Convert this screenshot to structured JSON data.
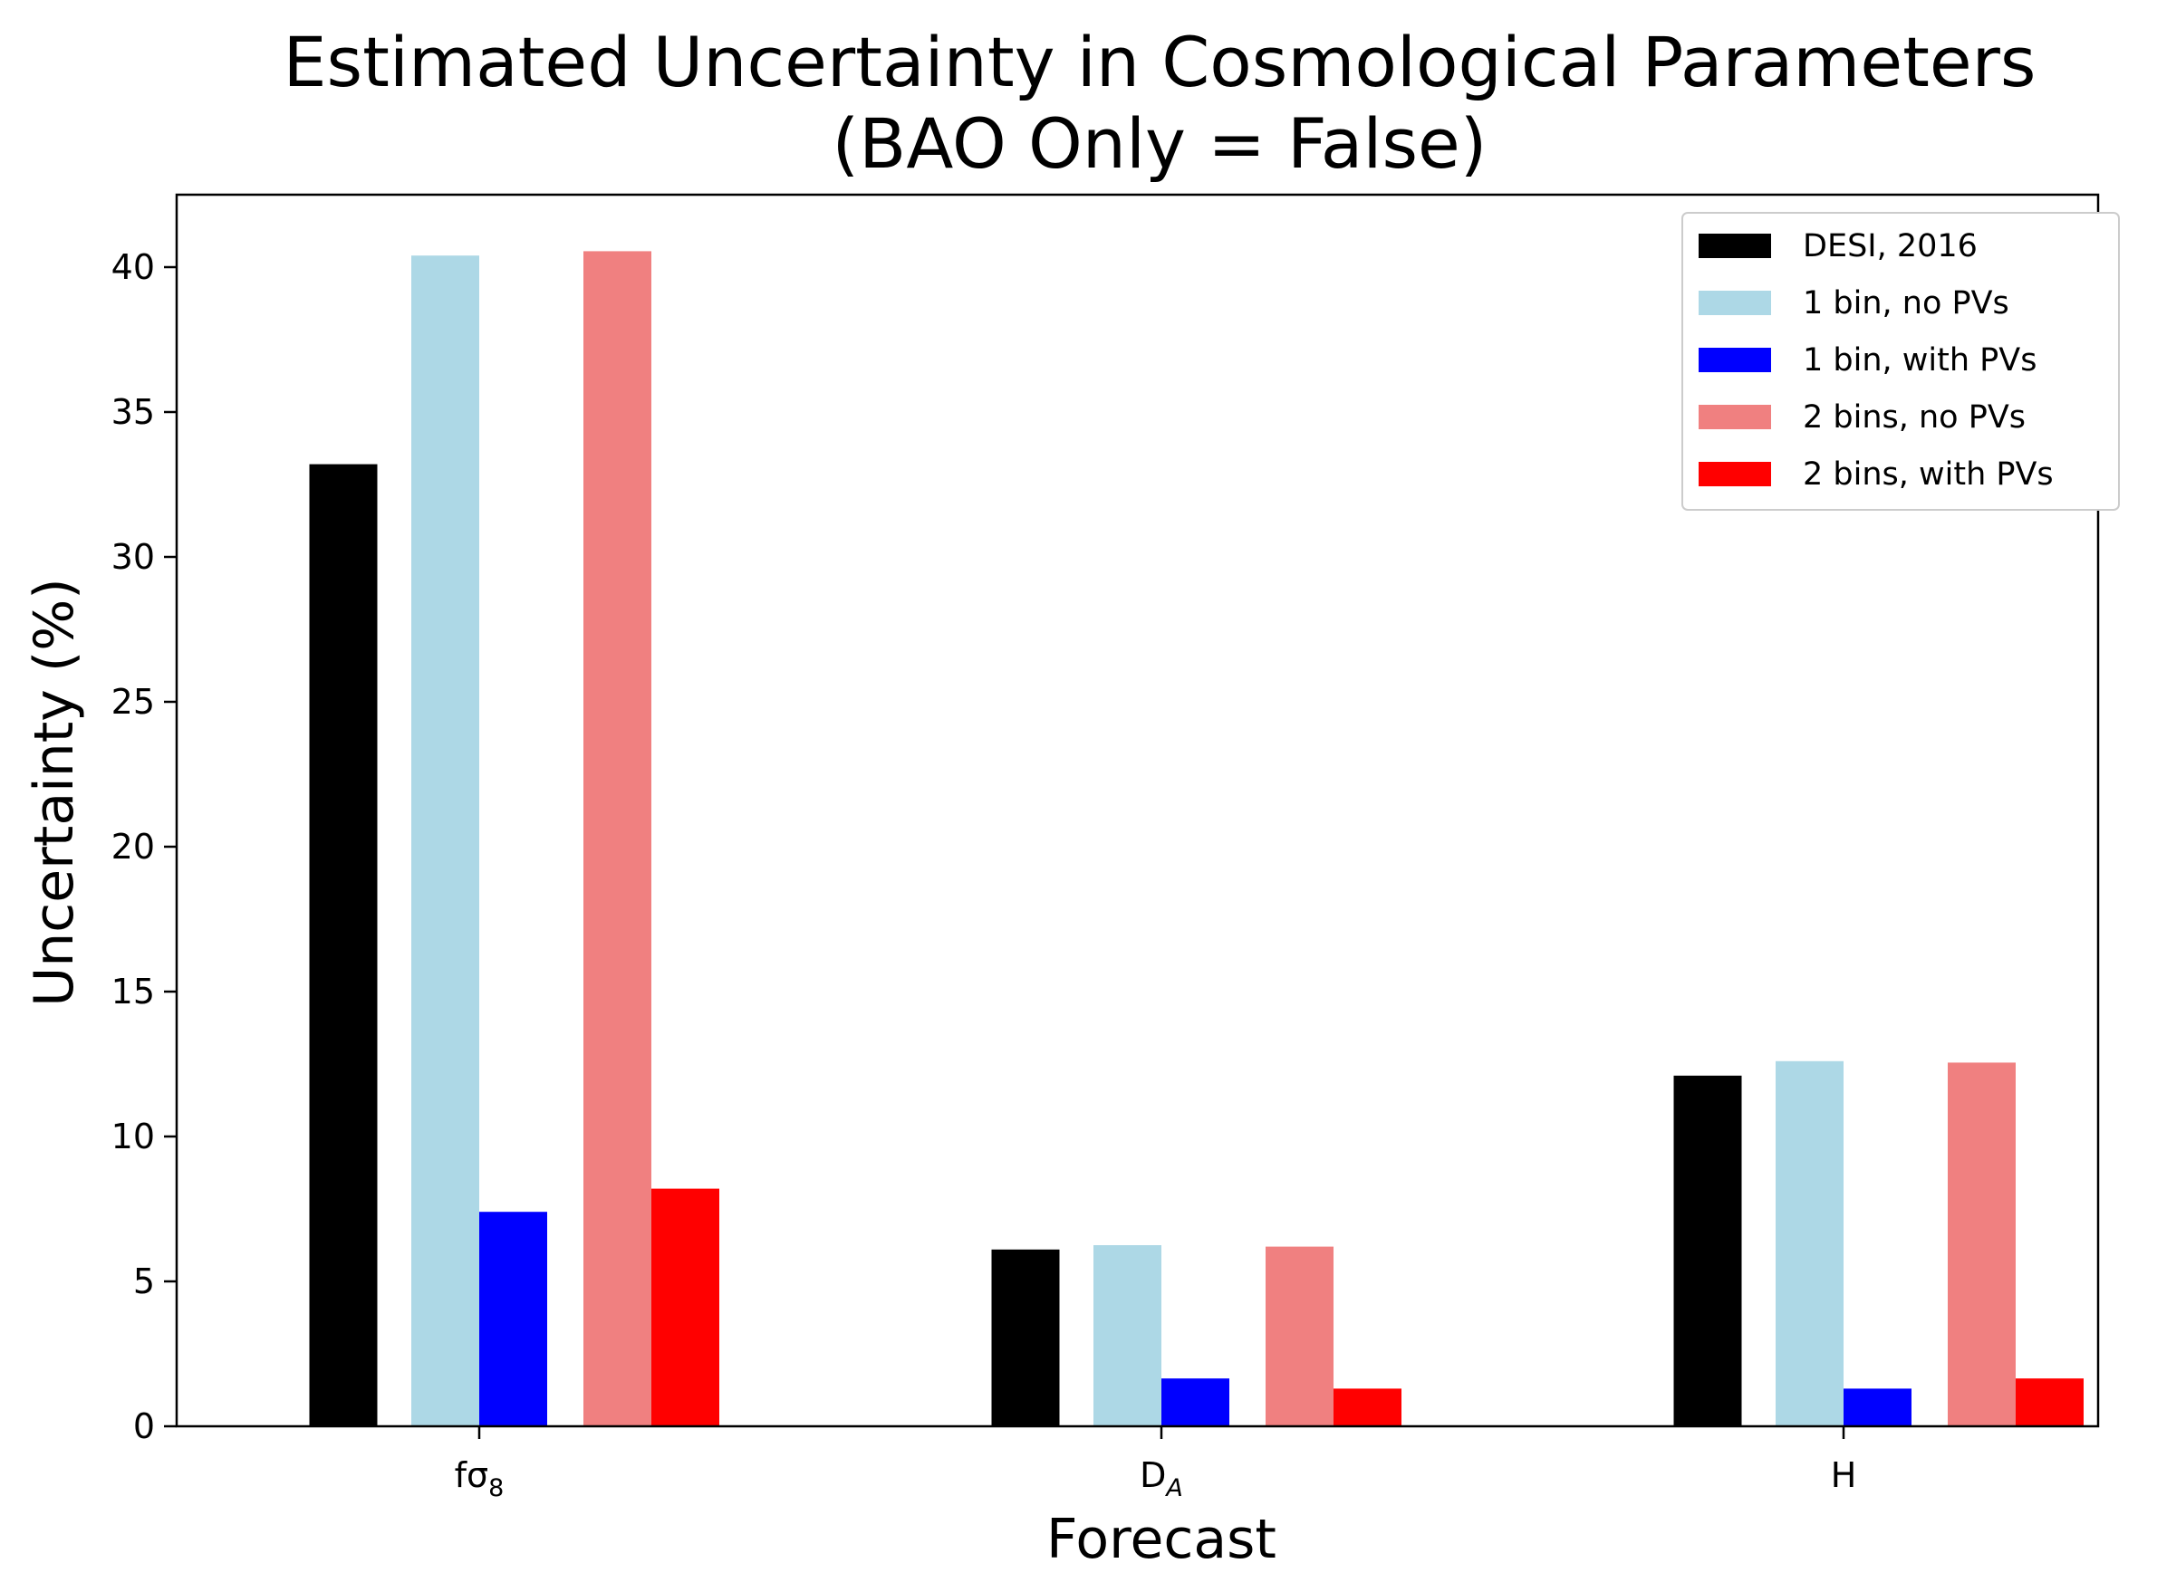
{
  "chart_data": {
    "type": "bar",
    "title": "Estimated Uncertainty in Cosmological Parameters",
    "subtitle": "(BAO Only = False)",
    "xlabel": "Forecast",
    "ylabel": "Uncertainty (%)",
    "categories": [
      {
        "base": "fσ",
        "sub": "8",
        "sub_italic": false
      },
      {
        "base": "D",
        "sub": "A",
        "sub_italic": true
      },
      {
        "base": "H",
        "sub": "",
        "sub_italic": false
      }
    ],
    "ylim": [
      0,
      42.5
    ],
    "yticks": [
      0,
      5,
      10,
      15,
      20,
      25,
      30,
      35,
      40
    ],
    "grid": false,
    "legend_position": "top-right",
    "series": [
      {
        "name": "DESI, 2016",
        "color": "#000000",
        "values": [
          33.2,
          6.1,
          12.1
        ]
      },
      {
        "name": "1 bin, no PVs",
        "color": "#add8e6",
        "values": [
          40.4,
          6.25,
          12.6
        ]
      },
      {
        "name": "1 bin, with PVs",
        "color": "#0000ff",
        "values": [
          7.4,
          1.65,
          1.3
        ]
      },
      {
        "name": "2 bins, no PVs",
        "color": "#f08080",
        "values": [
          40.55,
          6.2,
          12.55
        ]
      },
      {
        "name": "2 bins, with PVs",
        "color": "#ff0000",
        "values": [
          8.2,
          1.3,
          1.65
        ]
      }
    ]
  }
}
